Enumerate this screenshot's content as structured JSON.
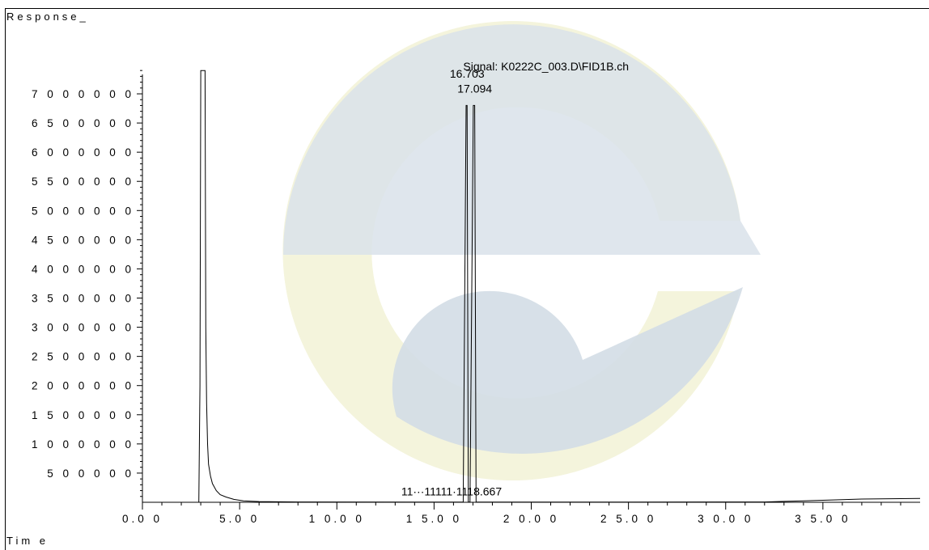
{
  "header": {
    "y_title": "Response_",
    "x_title": "Tim e"
  },
  "chart_data": {
    "type": "line",
    "title": "Signal: K0222C_003.D\\FID1B.ch",
    "xlabel": "Tim e",
    "ylabel": "Response_",
    "xlim": [
      0,
      40
    ],
    "ylim": [
      0,
      7400000
    ],
    "x_ticks": [
      {
        "value": 0,
        "label": "0.0 0"
      },
      {
        "value": 5,
        "label": "5.0 0"
      },
      {
        "value": 10,
        "label": "1 0.0 0"
      },
      {
        "value": 15,
        "label": "1 5.0 0"
      },
      {
        "value": 20,
        "label": "2 0.0 0"
      },
      {
        "value": 25,
        "label": "2 5.0 0"
      },
      {
        "value": 30,
        "label": "3 0.0 0"
      },
      {
        "value": 35,
        "label": "3 5.0 0"
      }
    ],
    "y_ticks": [
      {
        "value": 500000,
        "label": "5 0 0 0 0 0"
      },
      {
        "value": 1000000,
        "label": "1 0 0 0 0 0 0"
      },
      {
        "value": 1500000,
        "label": "1 5 0 0 0 0 0"
      },
      {
        "value": 2000000,
        "label": "2 0 0 0 0 0 0"
      },
      {
        "value": 2500000,
        "label": "2 5 0 0 0 0 0"
      },
      {
        "value": 3000000,
        "label": "3 0 0 0 0 0 0"
      },
      {
        "value": 3500000,
        "label": "3 5 0 0 0 0 0"
      },
      {
        "value": 4000000,
        "label": "4 0 0 0 0 0 0"
      },
      {
        "value": 4500000,
        "label": "4 5 0 0 0 0 0"
      },
      {
        "value": 5000000,
        "label": "5 0 0 0 0 0 0"
      },
      {
        "value": 5500000,
        "label": "5 5 0 0 0 0 0"
      },
      {
        "value": 6000000,
        "label": "6 0 0 0 0 0 0"
      },
      {
        "value": 6500000,
        "label": "6 5 0 0 0 0 0"
      },
      {
        "value": 7000000,
        "label": "7 0 0 0 0 0 0"
      }
    ],
    "series": [
      {
        "x": [
          0.0,
          2.9,
          2.96,
          3.0,
          3.05,
          3.1,
          3.14,
          3.18,
          3.22,
          3.26,
          3.3,
          3.35,
          3.4,
          3.5,
          3.6,
          3.8,
          4.0,
          4.3,
          4.7,
          5.2,
          6.0,
          8.0,
          14.0,
          16.5,
          16.65,
          16.7,
          16.76,
          16.85,
          17.02,
          17.09,
          17.16,
          17.3,
          18.5,
          25.0,
          32.0,
          33.0,
          34.0,
          35.0,
          36.0,
          37.0,
          38.0,
          39.0,
          40.0
        ],
        "y": [
          0,
          0,
          2000000,
          7400000,
          7400000,
          7400000,
          7400000,
          7400000,
          7400000,
          3000000,
          1700000,
          1000000,
          650000,
          450000,
          320000,
          200000,
          130000,
          90000,
          50000,
          25000,
          12000,
          6000,
          3000,
          3000,
          6800000,
          6800000,
          3000,
          3000,
          6800000,
          6800000,
          3000,
          3000,
          3000,
          3000,
          5000,
          15000,
          25000,
          35000,
          45000,
          55000,
          60000,
          63000,
          65000
        ]
      }
    ],
    "annotations": [
      {
        "x": 16.703,
        "y": 7280000,
        "text": "16.703"
      },
      {
        "x": 17.094,
        "y": 7020000,
        "text": "17.094"
      },
      {
        "x": 15.9,
        "y": 120000,
        "text": "11···11111·1118.667"
      }
    ]
  }
}
